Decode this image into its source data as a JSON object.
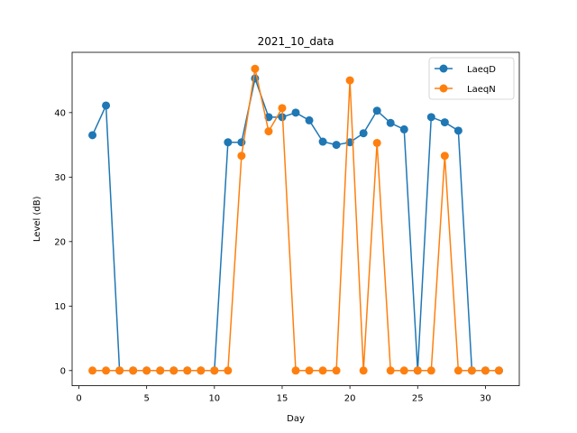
{
  "chart_data": {
    "type": "line",
    "title": "2021_10_data",
    "xlabel": "Day",
    "ylabel": "Level (dB)",
    "xlim": [
      -0.5,
      32.5
    ],
    "ylim": [
      -2.35,
      49.35
    ],
    "xticks": [
      0,
      5,
      10,
      15,
      20,
      25,
      30
    ],
    "yticks": [
      0,
      10,
      20,
      30,
      40
    ],
    "legend_position": "top-right",
    "x": [
      1,
      2,
      3,
      4,
      5,
      6,
      7,
      8,
      9,
      10,
      11,
      12,
      13,
      14,
      15,
      16,
      17,
      18,
      19,
      20,
      21,
      22,
      23,
      24,
      25,
      26,
      27,
      28,
      29,
      30,
      31
    ],
    "series": [
      {
        "name": "LaeqD",
        "color": "#1f77b4",
        "values": [
          36.5,
          41.1,
          0,
          0,
          0,
          0,
          0,
          0,
          0,
          0,
          35.4,
          35.4,
          45.3,
          39.3,
          39.3,
          40.0,
          38.8,
          35.5,
          35.0,
          35.4,
          36.8,
          40.3,
          38.4,
          37.4,
          0,
          39.3,
          38.5,
          37.2,
          0,
          0,
          0
        ]
      },
      {
        "name": "LaeqN",
        "color": "#ff7f0e",
        "values": [
          0,
          0,
          0,
          0,
          0,
          0,
          0,
          0,
          0,
          0,
          0,
          33.3,
          46.8,
          37.1,
          40.7,
          0,
          0,
          0,
          0,
          45.0,
          0,
          35.3,
          0,
          0,
          0,
          0,
          33.3,
          0,
          0,
          0,
          0
        ]
      }
    ]
  }
}
